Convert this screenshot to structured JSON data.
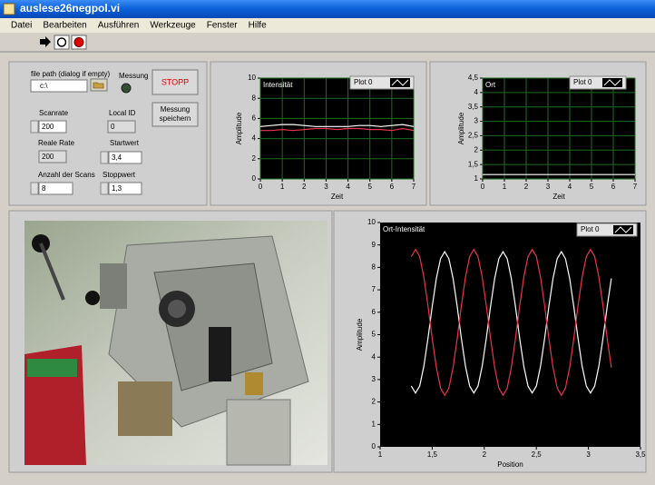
{
  "window": {
    "title": "auslese26negpol.vi"
  },
  "menu": [
    "Datei",
    "Bearbeiten",
    "Ausführen",
    "Werkzeuge",
    "Fenster",
    "Hilfe"
  ],
  "controls": {
    "file_path_label": "file path (dialog if empty)",
    "file_path_value": "c:\\",
    "led_label": "Messung",
    "stop_button": "STOPP",
    "scanrate_label": "Scanrate",
    "scanrate_value": "200",
    "local_id_label": "Local ID",
    "local_id_value": "0",
    "save_button": [
      "Messung",
      "speichern"
    ],
    "real_rate_label": "Reale Rate",
    "real_rate_value": "200",
    "start_label": "Startwert",
    "start_value": "3,4",
    "scans_label": "Anzahl der Scans",
    "scans_value": "8",
    "stop_label": "Stoppwert",
    "stop_value": "1,3"
  },
  "chart_data": [
    {
      "type": "line",
      "title": "Intensität",
      "x_label": "Zeit",
      "y_label": "Amplitude",
      "grid": true,
      "x": [
        0,
        0.5,
        1,
        1.5,
        2,
        2.5,
        3,
        3.5,
        4,
        4.5,
        5,
        5.5,
        6,
        6.5,
        7
      ],
      "series": [
        {
          "name": "Plot 0",
          "color": "#ffffff",
          "values": [
            5.2,
            5.3,
            5.4,
            5.4,
            5.3,
            5.2,
            5.2,
            5.2,
            5.2,
            5.3,
            5.3,
            5.2,
            5.3,
            5.4,
            5.2
          ]
        },
        {
          "color": "#e8344c",
          "values": [
            4.8,
            4.8,
            4.9,
            4.8,
            4.9,
            5.0,
            5.0,
            4.9,
            5.0,
            5.0,
            4.9,
            4.9,
            4.8,
            5.0,
            4.8
          ]
        }
      ],
      "xlim": [
        0,
        7
      ],
      "xticks": [
        0,
        1,
        2,
        3,
        4,
        5,
        6,
        7
      ],
      "ylim": [
        0,
        10
      ],
      "yticks": [
        0,
        2,
        4,
        6,
        8,
        10
      ]
    },
    {
      "type": "line",
      "title": "Ort",
      "x_label": "Zeit",
      "y_label": "Amplitude",
      "grid": true,
      "x": [
        0,
        7
      ],
      "series": [
        {
          "name": "Plot 0",
          "color": "#ffffff",
          "values": [
            1.15,
            1.15
          ]
        }
      ],
      "xlim": [
        0,
        7
      ],
      "xticks": [
        0,
        1,
        2,
        3,
        4,
        5,
        6,
        7
      ],
      "ylim": [
        1,
        4.5
      ],
      "yticks": [
        1,
        {
          "value": 1.5,
          "label": "1,5"
        },
        2,
        {
          "value": 2.5,
          "label": "2,5"
        },
        3,
        {
          "value": 3.5,
          "label": "3,5"
        },
        4,
        {
          "value": 4.5,
          "label": "4,5"
        }
      ]
    },
    {
      "type": "line",
      "title": "Ort-Intensität",
      "x_label": "Position",
      "y_label": "Amplitude",
      "grid": false,
      "x": [
        1.3,
        1.34,
        1.38,
        1.42,
        1.46,
        1.5,
        1.54,
        1.58,
        1.62,
        1.66,
        1.7,
        1.74,
        1.78,
        1.82,
        1.86,
        1.9,
        1.94,
        1.98,
        2.02,
        2.06,
        2.1,
        2.14,
        2.18,
        2.22,
        2.26,
        2.3,
        2.34,
        2.38,
        2.42,
        2.46,
        2.5,
        2.54,
        2.58,
        2.62,
        2.66,
        2.7,
        2.74,
        2.78,
        2.82,
        2.86,
        2.9,
        2.94,
        2.98,
        3.02,
        3.06,
        3.1,
        3.14,
        3.18,
        3.22
      ],
      "series": [
        {
          "name": "Plot 0",
          "color": "#ffffff",
          "values": [
            2.71,
            2.4,
            2.71,
            3.59,
            4.85,
            6.25,
            7.51,
            8.39,
            8.7,
            8.39,
            7.51,
            6.25,
            4.85,
            3.59,
            2.71,
            2.4,
            2.71,
            3.59,
            4.85,
            6.25,
            7.51,
            8.39,
            8.7,
            8.39,
            7.51,
            6.25,
            4.85,
            3.59,
            2.71,
            2.4,
            2.71,
            3.59,
            4.85,
            6.25,
            7.51,
            8.39,
            8.7,
            8.39,
            7.51,
            6.25,
            4.85,
            3.59,
            2.71,
            2.4,
            2.71,
            3.59,
            4.85,
            6.25,
            7.51
          ]
        },
        {
          "color": "#e8344c",
          "values": [
            8.48,
            8.8,
            8.48,
            7.57,
            6.27,
            4.83,
            3.53,
            2.62,
            2.3,
            2.62,
            3.53,
            4.83,
            6.27,
            7.57,
            8.48,
            8.8,
            8.48,
            7.57,
            6.27,
            4.83,
            3.53,
            2.62,
            2.3,
            2.62,
            3.53,
            4.83,
            6.27,
            7.57,
            8.48,
            8.8,
            8.48,
            7.57,
            6.27,
            4.83,
            3.53,
            2.62,
            2.3,
            2.62,
            3.53,
            4.83,
            6.27,
            7.57,
            8.48,
            8.8,
            8.48,
            7.57,
            6.27,
            4.83,
            3.53
          ]
        }
      ],
      "xlim": [
        1,
        3.5
      ],
      "xticks": [
        1,
        {
          "value": 1.5,
          "label": "1,5"
        },
        2,
        {
          "value": 2.5,
          "label": "2,5"
        },
        3,
        {
          "value": 3.5,
          "label": "3,5"
        }
      ],
      "ylim": [
        0,
        10
      ],
      "yticks": [
        0,
        1,
        2,
        3,
        4,
        5,
        6,
        7,
        8,
        9,
        10
      ]
    }
  ]
}
